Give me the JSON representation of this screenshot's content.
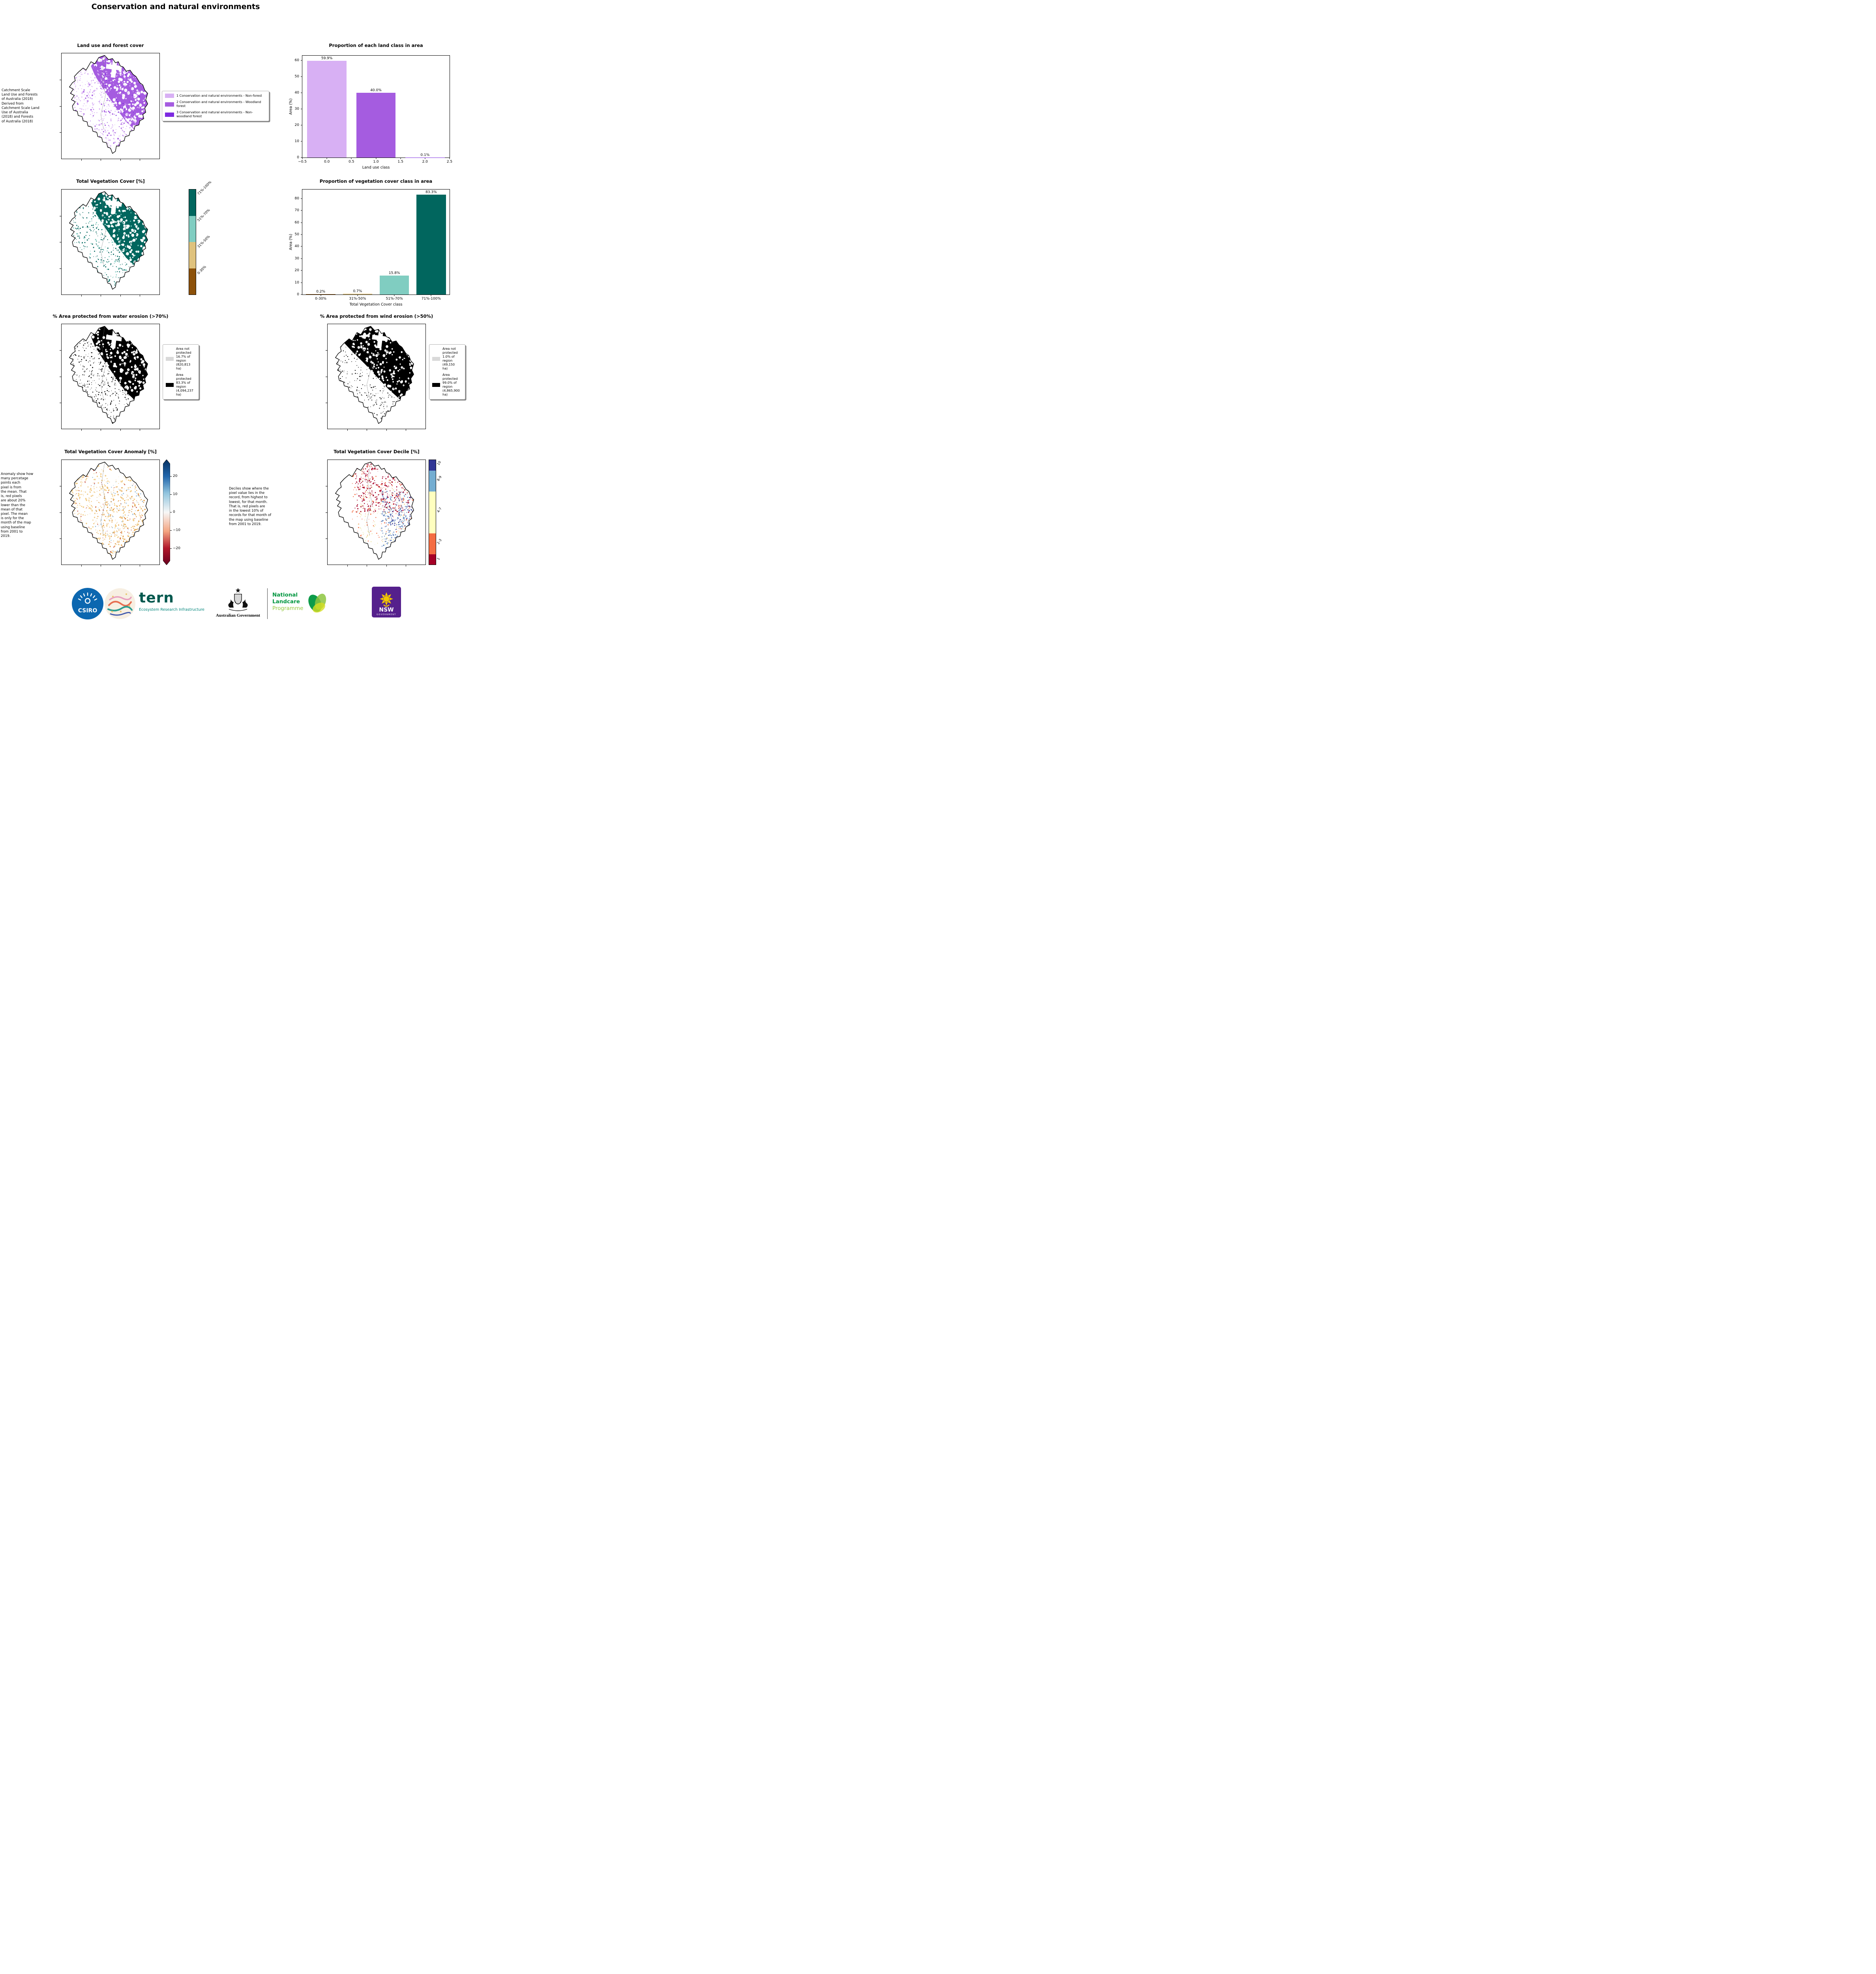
{
  "page": {
    "title": "Conservation and natural environments"
  },
  "palette": {
    "land_nonforest": "#d8b0f4",
    "land_woodland": "#a55ce0",
    "land_nonwoodland": "#7d2ae0",
    "veg_dark_teal": "#01665e",
    "veg_light_teal": "#80cdc1",
    "veg_tan": "#dfc27d",
    "veg_brown": "#8c510a",
    "not_protected_gray": "#d9d9d9",
    "protected_black": "#000000",
    "anomaly_positive_blue": "#2166ac",
    "anomaly_negative_red": "#b2182b"
  },
  "land_use_map": {
    "title": "Land use and forest cover",
    "note": " Catchment Scale\nLand Use and Forests\nof Australia (2018)\nDerived from\nCatchment Scale Land\nUse of Australia\n(2018) and Forests\nof Australia (2018)",
    "legend": [
      {
        "label": "1 Conservation and natural environments - Non-forest",
        "color": "#d8b0f4"
      },
      {
        "label": "2 Conservation and natural environments - Woodland forest",
        "color": "#a55ce0"
      },
      {
        "label": "3 Conservation and natural environments - Non-woodland forest",
        "color": "#7d2ae0"
      }
    ]
  },
  "veg_cover_map": {
    "title": "Total Vegetation Cover [%]",
    "colorbar": [
      {
        "label": "71%-100%",
        "color": "#01665e"
      },
      {
        "label": "51%-70%",
        "color": "#80cdc1"
      },
      {
        "label": "31%-50%",
        "color": "#dfc27d"
      },
      {
        "label": "0-30%",
        "color": "#8c510a"
      }
    ]
  },
  "water_erosion_map": {
    "title": "% Area protected from water erosion (>70%)",
    "legend": [
      {
        "label": "Area not\nprotected\n16.7% of\nregion\n(820,813\nha)",
        "color": "#d9d9d9"
      },
      {
        "label": "Area\nprotected\n83.3% of\nregion\n(4,094,237\nha)",
        "color": "#000000"
      }
    ]
  },
  "wind_erosion_map": {
    "title": "% Area protected from wind erosion (>50%)",
    "legend": [
      {
        "label": "Area not\nprotected\n1.0% of\nregion\n(49,150\nha)",
        "color": "#d9d9d9"
      },
      {
        "label": "Area\nprotected\n99.0% of\nregion\n(4,865,900\nha)",
        "color": "#000000"
      }
    ]
  },
  "anomaly_map": {
    "title": "Total Vegetation Cover Anomaly [%]",
    "note": "Anomaly show how\nmany percetage\npoints each\npixel is from\nthe mean. That\nis, red pixels\nare about 20%\nlower than the\nmean of that\npixel. The mean\nis only for the\nmonth of the map\nusing baseline\nfrom 2001 to\n2019.",
    "colorbar_ticks": [
      "20",
      "10",
      "0",
      "−10",
      "−20"
    ]
  },
  "decile_map": {
    "title": "Total Vegetation Cover Decile [%]",
    "note": "Deciles show where the\npixel value lies in the\nrecord, from highest to\nlowest, for that month.\nThat is, red pixels are\nin the lowest 10% of\nrecords for that month of\nthe map using baseline\nfrom 2001 to 2019.",
    "colorbar": [
      {
        "label": "10",
        "color": "#313695"
      },
      {
        "label": "8-9",
        "color": "#74add1"
      },
      {
        "label": "4-7",
        "color": "#ffffbf"
      },
      {
        "label": "2-3",
        "color": "#f46d43"
      },
      {
        "label": "1",
        "color": "#a50026"
      }
    ]
  },
  "chart_data": [
    {
      "type": "bar",
      "title": "Proportion of each land class in area",
      "xlabel": "Land use class",
      "ylabel": "Area (%)",
      "x": [
        0,
        1,
        2
      ],
      "values": [
        59.9,
        40.0,
        0.1
      ],
      "bar_labels": [
        "59.9%",
        "40.0%",
        "0.1%"
      ],
      "bar_colors": [
        "#d8b0f4",
        "#a55ce0",
        "#7d2ae0"
      ],
      "xlim": [
        -0.5,
        2.5
      ],
      "xticks": [
        -0.5,
        0,
        0.5,
        1,
        1.5,
        2,
        2.5
      ],
      "xtick_labels": [
        "−0.5",
        "0.0",
        "0.5",
        "1.0",
        "1.5",
        "2.0",
        "2.5"
      ],
      "ylim": [
        0,
        63
      ],
      "yticks": [
        0,
        10,
        20,
        30,
        40,
        50,
        60
      ],
      "grid": false,
      "legend_position": "none"
    },
    {
      "type": "bar",
      "title": "Proportion of vegetation cover class in area",
      "xlabel": "Total Vegetation Cover class",
      "ylabel": "Area (%)",
      "categories": [
        "0-30%",
        "31%-50%",
        "51%-70%",
        "71%-100%"
      ],
      "values": [
        0.2,
        0.7,
        15.8,
        83.3
      ],
      "bar_labels": [
        "0.2%",
        "0.7%",
        "15.8%",
        "83.3%"
      ],
      "bar_colors": [
        "#8c510a",
        "#dfc27d",
        "#80cdc1",
        "#01665e"
      ],
      "ylim": [
        0,
        87.5
      ],
      "yticks": [
        0,
        10,
        20,
        30,
        40,
        50,
        60,
        70,
        80
      ],
      "grid": false,
      "legend_position": "none"
    }
  ],
  "footer": {
    "csiro_label": "CSIRO",
    "tern_name": "tern",
    "tern_tagline": "Ecosystem Research Infrastructure",
    "aus_gov_label": "Australian Government",
    "landcare_line1": "National",
    "landcare_line2": "Landcare",
    "landcare_line3": "Programme",
    "nsw_label": "NSW",
    "nsw_sub_label": "GOVERNMENT"
  }
}
